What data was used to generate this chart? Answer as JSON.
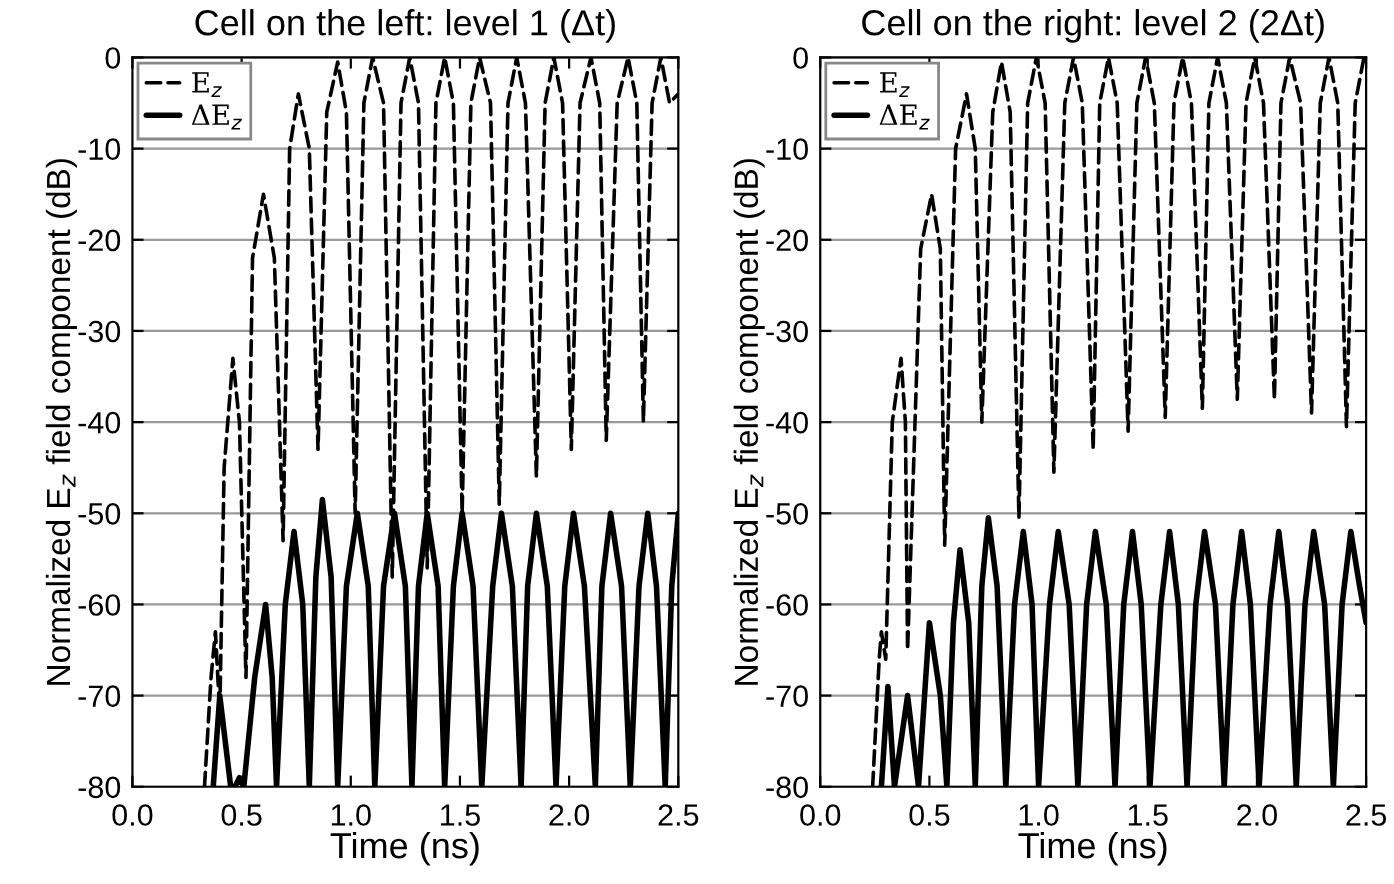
{
  "chart_data": [
    {
      "type": "line",
      "title": "Cell on the left: level 1 (Δt)",
      "xlabel": "Time (ns)",
      "ylabel": "Normalized E$_{z}$ field component (dB)",
      "xlim": [
        0,
        2.5
      ],
      "ylim": [
        -80,
        0
      ],
      "xticks": [
        {
          "value": 0,
          "label": "0.0"
        },
        0.5,
        {
          "value": 1,
          "label": "1.0"
        },
        1.5,
        {
          "value": 2,
          "label": "2.0"
        },
        2.5
      ],
      "yticks": [
        -80,
        -70,
        -60,
        -50,
        -40,
        -30,
        -20,
        -10,
        0
      ],
      "grid": "y",
      "legend": "top left",
      "series": [
        {
          "name": "E$_{z}$",
          "color": "#000000",
          "line_style": "dashed",
          "x": [
            0.33,
            0.36,
            0.38,
            0.4,
            0.42,
            0.46,
            0.49,
            0.52,
            0.55,
            0.6,
            0.65,
            0.69,
            0.72,
            0.76,
            0.81,
            0.85,
            0.89,
            0.94,
            0.98,
            1.02,
            1.06,
            1.1,
            1.15,
            1.19,
            1.23,
            1.27,
            1.31,
            1.35,
            1.39,
            1.43,
            1.47,
            1.51,
            1.55,
            1.59,
            1.64,
            1.68,
            1.72,
            1.76,
            1.8,
            1.85,
            1.89,
            1.93,
            1.97,
            2.01,
            2.05,
            2.1,
            2.14,
            2.17,
            2.22,
            2.27,
            2.31,
            2.34,
            2.38,
            2.42,
            2.46,
            2.5
          ],
          "values": [
            -80,
            -68,
            -63,
            -72,
            -45,
            -33,
            -40,
            -68,
            -22,
            -15,
            -22,
            -53,
            -10,
            -4,
            -10,
            -43,
            -6,
            -0.5,
            -6,
            -50,
            -5,
            0,
            -5,
            -57,
            -5,
            0,
            -5,
            -56,
            -5,
            0,
            -5,
            -50,
            -5,
            0,
            -5,
            -49,
            -5,
            0,
            -5,
            -46,
            -5,
            0,
            -5,
            -43,
            -5,
            0,
            -5,
            -42,
            -5,
            0,
            -5,
            -40,
            -5,
            0,
            -5,
            -4
          ]
        },
        {
          "name": "ΔE$_{z}$",
          "color": "#000000",
          "line_style": "solid",
          "x": [
            0.37,
            0.4,
            0.45,
            0.47,
            0.49,
            0.51,
            0.56,
            0.61,
            0.64,
            0.66,
            0.7,
            0.74,
            0.78,
            0.81,
            0.84,
            0.87,
            0.91,
            0.94,
            0.98,
            1.03,
            1.08,
            1.11,
            1.15,
            1.2,
            1.25,
            1.28,
            1.31,
            1.35,
            1.4,
            1.43,
            1.47,
            1.51,
            1.56,
            1.6,
            1.65,
            1.69,
            1.74,
            1.78,
            1.81,
            1.85,
            1.9,
            1.94,
            1.98,
            2.02,
            2.07,
            2.12,
            2.15,
            2.19,
            2.24,
            2.28,
            2.32,
            2.36,
            2.4,
            2.44,
            2.47,
            2.5
          ],
          "values": [
            -80,
            -70,
            -80,
            -80,
            -79,
            -80,
            -68,
            -60,
            -68,
            -80,
            -60,
            -52,
            -60,
            -80,
            -57,
            -48.5,
            -57,
            -80,
            -58,
            -50,
            -58,
            -80,
            -58,
            -50,
            -58,
            -80,
            -58,
            -50,
            -58,
            -80,
            -58,
            -50,
            -58,
            -80,
            -58,
            -50,
            -58,
            -80,
            -58,
            -50,
            -58,
            -80,
            -58,
            -50,
            -58,
            -80,
            -58,
            -50,
            -58,
            -80,
            -58,
            -50,
            -58,
            -80,
            -58,
            -50
          ]
        }
      ]
    },
    {
      "type": "line",
      "title": "Cell on the right: level 2 (2Δt)",
      "xlabel": "Time (ns)",
      "ylabel": "Normalized E$_{z}$ field component (dB)",
      "xlim": [
        0,
        2.5
      ],
      "ylim": [
        -80,
        0
      ],
      "xticks": [
        {
          "value": 0,
          "label": "0.0"
        },
        0.5,
        {
          "value": 1,
          "label": "1.0"
        },
        1.5,
        {
          "value": 2,
          "label": "2.0"
        },
        2.5
      ],
      "yticks": [
        -80,
        -70,
        -60,
        -50,
        -40,
        -30,
        -20,
        -10,
        0
      ],
      "grid": "y",
      "legend": "top left",
      "series": [
        {
          "name": "E$_{z}$",
          "color": "#000000",
          "line_style": "dashed",
          "x": [
            0.24,
            0.27,
            0.28,
            0.3,
            0.33,
            0.37,
            0.39,
            0.4,
            0.46,
            0.51,
            0.55,
            0.57,
            0.62,
            0.67,
            0.71,
            0.74,
            0.79,
            0.83,
            0.87,
            0.91,
            0.95,
            0.99,
            1.03,
            1.07,
            1.12,
            1.16,
            1.2,
            1.25,
            1.28,
            1.32,
            1.36,
            1.41,
            1.45,
            1.49,
            1.53,
            1.58,
            1.62,
            1.66,
            1.7,
            1.75,
            1.78,
            1.82,
            1.86,
            1.91,
            1.95,
            1.99,
            2.03,
            2.08,
            2.11,
            2.15,
            2.2,
            2.25,
            2.29,
            2.33,
            2.37,
            2.41,
            2.45,
            2.49
          ],
          "values": [
            -80,
            -66,
            -63,
            -66,
            -40,
            -33,
            -40,
            -65,
            -21,
            -15,
            -21,
            -53.5,
            -10,
            -4,
            -10,
            -40,
            -6,
            -0.5,
            -6,
            -50.5,
            -5,
            0,
            -5,
            -45.5,
            -5,
            0,
            -5,
            -43,
            -5,
            0,
            -5,
            -41,
            -5,
            0,
            -5,
            -39.5,
            -5,
            0,
            -5,
            -38.5,
            -5,
            0,
            -5,
            -37.5,
            -5,
            0,
            -5,
            -37.5,
            -5,
            0,
            -5,
            -39,
            -5,
            0,
            -5,
            -40.5,
            -5,
            0
          ]
        },
        {
          "name": "ΔE$_{z}$",
          "color": "#000000",
          "line_style": "solid",
          "x": [
            0.28,
            0.31,
            0.34,
            0.4,
            0.45,
            0.5,
            0.55,
            0.58,
            0.61,
            0.64,
            0.68,
            0.71,
            0.74,
            0.77,
            0.81,
            0.85,
            0.89,
            0.93,
            0.97,
            1.0,
            1.05,
            1.09,
            1.14,
            1.18,
            1.22,
            1.26,
            1.31,
            1.35,
            1.39,
            1.43,
            1.47,
            1.51,
            1.56,
            1.6,
            1.64,
            1.68,
            1.72,
            1.76,
            1.81,
            1.85,
            1.89,
            1.93,
            1.97,
            2.01,
            2.06,
            2.1,
            2.14,
            2.18,
            2.22,
            2.26,
            2.31,
            2.35,
            2.39,
            2.43,
            2.47,
            2.5
          ],
          "values": [
            -80,
            -69,
            -80,
            -70,
            -80,
            -62,
            -70,
            -80,
            -62,
            -54,
            -62,
            -80,
            -58,
            -50.5,
            -58,
            -80,
            -60,
            -52,
            -60,
            -80,
            -60,
            -52,
            -60,
            -80,
            -60,
            -52,
            -60,
            -80,
            -60,
            -52,
            -60,
            -80,
            -60,
            -52,
            -60,
            -80,
            -60,
            -52,
            -60,
            -80,
            -60,
            -52,
            -60,
            -80,
            -60,
            -52,
            -60,
            -80,
            -60,
            -52,
            -60,
            -80,
            -60,
            -52,
            -58,
            -62
          ]
        }
      ]
    }
  ]
}
